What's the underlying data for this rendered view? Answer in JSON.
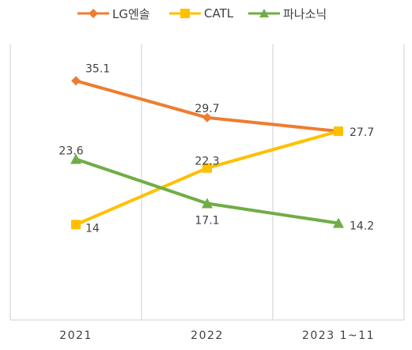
{
  "chart_data": {
    "type": "line",
    "categories": [
      "2021",
      "2022",
      "2023 1~11"
    ],
    "series": [
      {
        "name": "LG엔솔",
        "values": [
          35.1,
          29.7,
          27.7
        ],
        "color": "#ED7D31",
        "marker": "diamond"
      },
      {
        "name": "CATL",
        "values": [
          14,
          22.3,
          27.7
        ],
        "color": "#FFC000",
        "marker": "square"
      },
      {
        "name": "파나소닉",
        "values": [
          23.6,
          17.1,
          14.2
        ],
        "color": "#70AD47",
        "marker": "triangle"
      }
    ],
    "data_labels": [
      [
        "35.1",
        "29.7",
        "27.7"
      ],
      [
        "14",
        "22.3",
        ""
      ],
      [
        "23.6",
        "17.1",
        "14.2"
      ]
    ],
    "ylim": [
      0,
      40
    ],
    "grid": "vertical",
    "legend_position": "top"
  }
}
